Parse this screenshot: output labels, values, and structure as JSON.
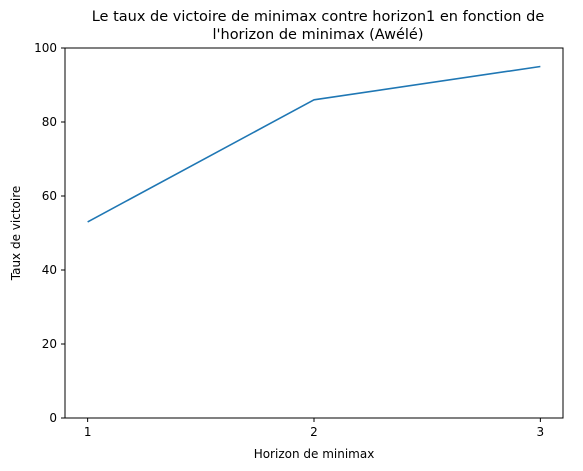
{
  "chart_data": {
    "type": "line",
    "title_lines": [
      "Le taux de victoire de minimax contre horizon1 en fonction de",
      "l'horizon de minimax (Awélé)"
    ],
    "xlabel": "Horizon de minimax",
    "ylabel": "Taux de victoire",
    "x": [
      1,
      2,
      3
    ],
    "series": [
      {
        "values": [
          53,
          86,
          95
        ],
        "color": "#1f77b4"
      }
    ],
    "xlim": [
      0.9,
      3.1
    ],
    "ylim": [
      0,
      100
    ],
    "xticks": [
      1,
      2,
      3
    ],
    "yticks": [
      0,
      20,
      40,
      60,
      80,
      100
    ],
    "grid": false,
    "legend": "none"
  }
}
